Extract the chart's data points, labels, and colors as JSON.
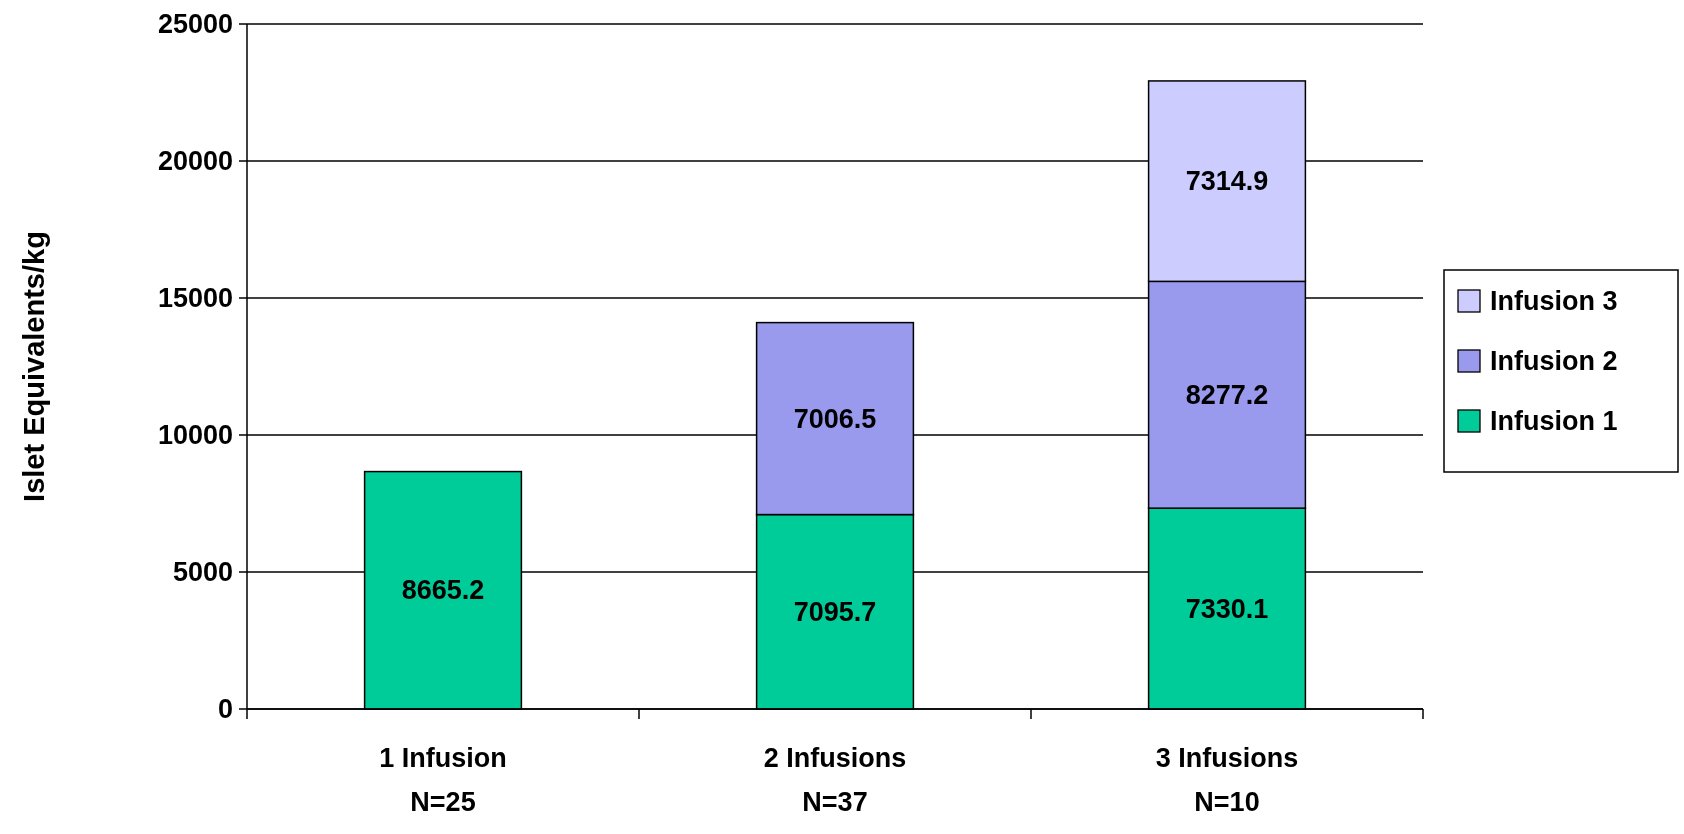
{
  "chart_data": {
    "type": "bar",
    "stacked": true,
    "ylabel": "Islet Equivalents/kg",
    "categories": [
      "1 Infusion\nN=25",
      "2 Infusions\nN=37",
      "3 Infusions\nN=10"
    ],
    "series": [
      {
        "name": "Infusion 1",
        "color": "#00cc99",
        "values": [
          8665.2,
          7095.7,
          7330.1
        ]
      },
      {
        "name": "Infusion 2",
        "color": "#9999ee",
        "values": [
          null,
          7006.5,
          8277.2
        ]
      },
      {
        "name": "Infusion 3",
        "color": "#ccccff",
        "values": [
          null,
          null,
          7314.9
        ]
      }
    ],
    "ylim": [
      0,
      25000
    ],
    "yticks": [
      0,
      5000,
      10000,
      15000,
      20000,
      25000
    ],
    "grid": "y",
    "legend": "right",
    "data_labels": true
  }
}
